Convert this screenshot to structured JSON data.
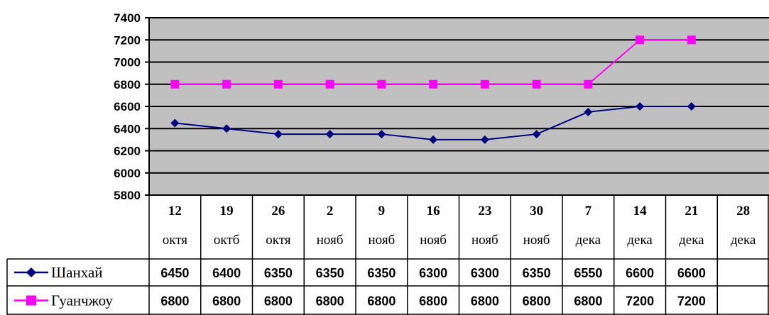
{
  "chart_data": {
    "type": "line",
    "title": "",
    "xlabel": "",
    "ylabel": "",
    "ylim": [
      5800,
      7400
    ],
    "yticks": [
      5800,
      6000,
      6200,
      6400,
      6600,
      6800,
      7000,
      7200,
      7400
    ],
    "grid": true,
    "legend": "data-table",
    "categories": [
      {
        "day": "12",
        "month": "октя"
      },
      {
        "day": "19",
        "month": "октб"
      },
      {
        "day": "26",
        "month": "октя"
      },
      {
        "day": "2",
        "month": "нояб"
      },
      {
        "day": "9",
        "month": "нояб"
      },
      {
        "day": "16",
        "month": "нояб"
      },
      {
        "day": "23",
        "month": "нояб"
      },
      {
        "day": "30",
        "month": "нояб"
      },
      {
        "day": "7",
        "month": "дека"
      },
      {
        "day": "14",
        "month": "дека"
      },
      {
        "day": "21",
        "month": "дека"
      },
      {
        "day": "28",
        "month": "дека"
      }
    ],
    "series": [
      {
        "name": "Шанхай",
        "color": "#000080",
        "marker": "diamond",
        "values": [
          6450,
          6400,
          6350,
          6350,
          6350,
          6300,
          6300,
          6350,
          6550,
          6600,
          6600,
          null
        ]
      },
      {
        "name": "Гуанчжоу",
        "color": "#FF00FF",
        "marker": "square",
        "values": [
          6800,
          6800,
          6800,
          6800,
          6800,
          6800,
          6800,
          6800,
          6800,
          7200,
          7200,
          null
        ]
      }
    ],
    "colors": {
      "plot_background": "#C0C0C0",
      "gridline": "#000000"
    }
  }
}
